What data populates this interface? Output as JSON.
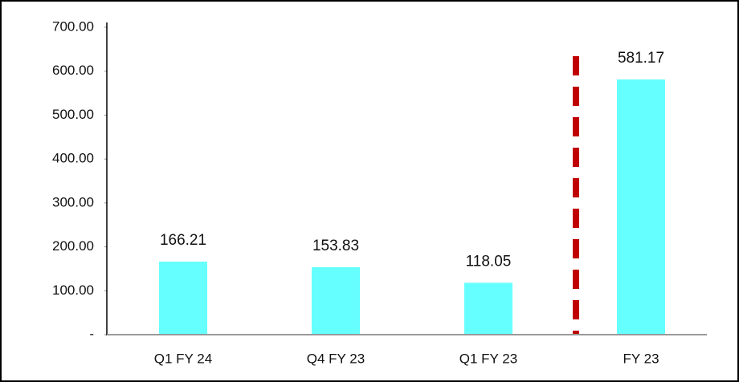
{
  "chart_data": {
    "type": "bar",
    "categories": [
      "Q1 FY 24",
      "Q4 FY 23",
      "Q1 FY 23",
      "FY 23"
    ],
    "values": [
      166.21,
      153.83,
      118.05,
      581.17
    ],
    "color": "#66ffff",
    "ylim": [
      0,
      700
    ],
    "yticks": [
      {
        "value": 0,
        "label": "-"
      },
      {
        "value": 100,
        "label": "100.00"
      },
      {
        "value": 200,
        "label": "200.00"
      },
      {
        "value": 300,
        "label": "300.00"
      },
      {
        "value": 400,
        "label": "400.00"
      },
      {
        "value": 500,
        "label": "500.00"
      },
      {
        "value": 600,
        "label": "600.00"
      },
      {
        "value": 700,
        "label": "700.00"
      }
    ],
    "grid": false
  }
}
